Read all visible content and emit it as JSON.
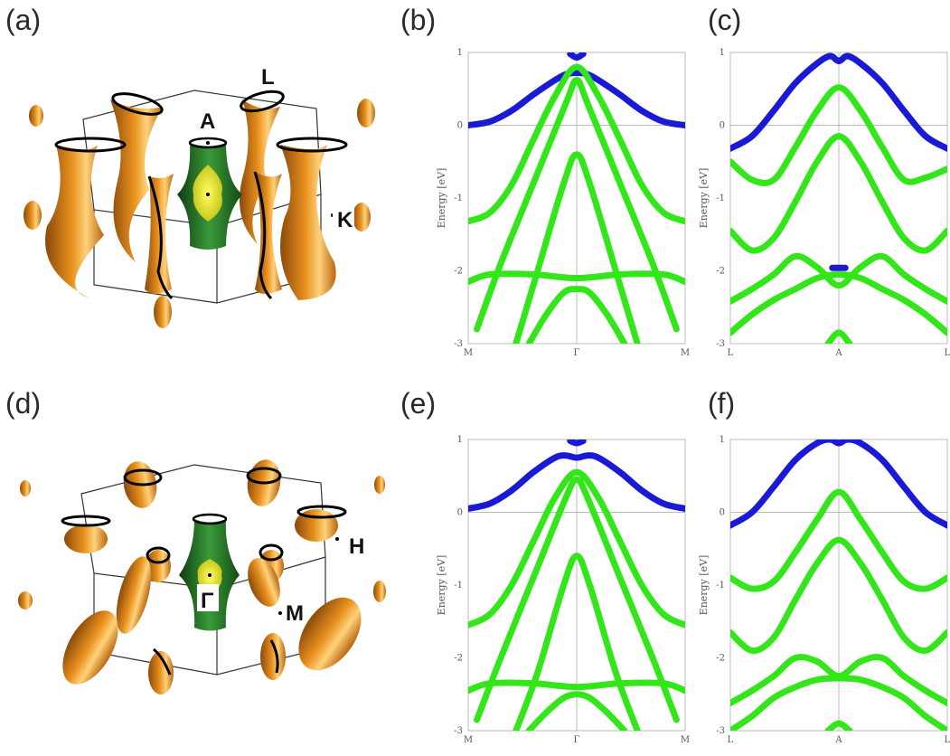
{
  "panels": {
    "a": "(a)",
    "b": "(b)",
    "c": "(c)",
    "d": "(d)",
    "e": "(e)",
    "f": "(f)"
  },
  "fermi_surface_top": {
    "labels": [
      "L",
      "A",
      "K"
    ]
  },
  "fermi_surface_bottom": {
    "labels": [
      "H",
      "Γ",
      "M"
    ]
  },
  "colors": {
    "band_upper": "#1a1ad6",
    "band_lower": "#33e61a",
    "pocket_orange": "#e8901e",
    "pocket_green": "#1f6b1f",
    "pocket_yellow": "#e8e82a"
  },
  "chart_data": [
    {
      "panel": "b",
      "type": "line",
      "ylabel": "Energy [eV]",
      "x_ticks": [
        "M",
        "Γ",
        "M"
      ],
      "ylim": [
        -3,
        1
      ],
      "y_ticks": [
        "1",
        "0",
        "-1",
        "-2",
        "-3"
      ],
      "series": [
        {
          "color": "blue",
          "x": [
            0,
            0.1,
            0.2,
            0.3,
            0.4,
            0.45,
            0.5,
            0.55,
            0.6,
            0.7,
            0.8,
            0.9,
            1
          ],
          "y": [
            0,
            0.05,
            0.2,
            0.42,
            0.62,
            0.7,
            0.72,
            0.7,
            0.62,
            0.42,
            0.2,
            0.05,
            0
          ]
        },
        {
          "color": "blue",
          "x": [
            0.47,
            0.5,
            0.53
          ],
          "y": [
            0.98,
            0.93,
            0.98
          ]
        },
        {
          "color": "green",
          "x": [
            0,
            0.1,
            0.2,
            0.3,
            0.4,
            0.5,
            0.6,
            0.7,
            0.8,
            0.9,
            1
          ],
          "y": [
            -1.32,
            -1.2,
            -0.82,
            -0.2,
            0.4,
            0.8,
            0.4,
            -0.2,
            -0.82,
            -1.2,
            -1.32
          ]
        },
        {
          "color": "green",
          "x": [
            0.04,
            0.15,
            0.3,
            0.45,
            0.5,
            0.55,
            0.7,
            0.85,
            0.96
          ],
          "y": [
            -2.8,
            -1.9,
            -0.8,
            0.3,
            0.62,
            0.3,
            -0.8,
            -1.9,
            -2.8
          ]
        },
        {
          "color": "green",
          "x": [
            0.22,
            0.32,
            0.44,
            0.5,
            0.56,
            0.68,
            0.78
          ],
          "y": [
            -3,
            -2,
            -0.8,
            -0.4,
            -0.8,
            -2,
            -3
          ]
        },
        {
          "color": "green",
          "x": [
            0,
            0.1,
            0.3,
            0.5,
            0.7,
            0.9,
            1
          ],
          "y": [
            -2.15,
            -2.05,
            -2.05,
            -2.1,
            -2.05,
            -2.05,
            -2.15
          ]
        },
        {
          "color": "green",
          "x": [
            0.28,
            0.36,
            0.44,
            0.5,
            0.56,
            0.64,
            0.72
          ],
          "y": [
            -3,
            -2.6,
            -2.3,
            -2.25,
            -2.3,
            -2.6,
            -3
          ]
        }
      ]
    },
    {
      "panel": "c",
      "type": "line",
      "ylabel": "Energy [eV]",
      "x_ticks": [
        "L",
        "A",
        "L"
      ],
      "ylim": [
        -3,
        1
      ],
      "y_ticks": [
        "1",
        "0",
        "-1",
        "-2",
        "-3"
      ],
      "series": [
        {
          "color": "blue",
          "x": [
            0,
            0.1,
            0.2,
            0.3,
            0.4,
            0.46,
            0.5,
            0.54,
            0.6,
            0.7,
            0.8,
            0.9,
            1
          ],
          "y": [
            -0.32,
            -0.15,
            0.2,
            0.58,
            0.85,
            0.95,
            0.88,
            0.95,
            0.85,
            0.58,
            0.2,
            -0.15,
            -0.32
          ]
        },
        {
          "color": "green",
          "x": [
            0,
            0.1,
            0.2,
            0.3,
            0.4,
            0.5,
            0.6,
            0.7,
            0.8,
            0.9,
            1
          ],
          "y": [
            -0.5,
            -0.75,
            -0.75,
            -0.3,
            0.2,
            0.52,
            0.2,
            -0.3,
            -0.75,
            -0.72,
            -0.6
          ]
        },
        {
          "color": "green",
          "x": [
            0,
            0.1,
            0.2,
            0.3,
            0.4,
            0.5,
            0.6,
            0.7,
            0.8,
            0.9,
            1
          ],
          "y": [
            -1.45,
            -1.72,
            -1.55,
            -1.05,
            -0.5,
            -0.15,
            -0.5,
            -1.05,
            -1.55,
            -1.72,
            -1.45
          ]
        },
        {
          "color": "green",
          "x": [
            0,
            0.1,
            0.2,
            0.3,
            0.4,
            0.5,
            0.6,
            0.7,
            0.8,
            0.9,
            1
          ],
          "y": [
            -2.42,
            -2.25,
            -2.05,
            -1.8,
            -1.95,
            -2.2,
            -1.95,
            -1.8,
            -2.05,
            -2.25,
            -2.42
          ]
        },
        {
          "color": "green",
          "x": [
            0,
            0.1,
            0.2,
            0.3,
            0.4,
            0.5,
            0.6,
            0.7,
            0.8,
            0.9,
            1
          ],
          "y": [
            -2.85,
            -2.6,
            -2.4,
            -2.25,
            -2.1,
            -2.05,
            -2.1,
            -2.25,
            -2.4,
            -2.6,
            -2.85
          ]
        },
        {
          "color": "green",
          "x": [
            0.45,
            0.5,
            0.55
          ],
          "y": [
            -3,
            -2.85,
            -3
          ]
        },
        {
          "color": "blue",
          "x": [
            0.47,
            0.5,
            0.53
          ],
          "y": [
            -1.96,
            -1.96,
            -1.96
          ]
        }
      ]
    },
    {
      "panel": "e",
      "type": "line",
      "ylabel": "Energy [eV]",
      "x_ticks": [
        "M",
        "Γ",
        "M"
      ],
      "ylim": [
        -3,
        1
      ],
      "y_ticks": [
        "1",
        "0",
        "-1",
        "-2",
        "-3"
      ],
      "series": [
        {
          "color": "blue",
          "x": [
            0,
            0.1,
            0.2,
            0.3,
            0.4,
            0.45,
            0.5,
            0.55,
            0.6,
            0.7,
            0.8,
            0.9,
            1
          ],
          "y": [
            0.05,
            0.12,
            0.3,
            0.55,
            0.75,
            0.78,
            0.75,
            0.78,
            0.75,
            0.55,
            0.3,
            0.12,
            0.05
          ]
        },
        {
          "color": "blue",
          "x": [
            0.47,
            0.5,
            0.53
          ],
          "y": [
            0.98,
            0.95,
            0.98
          ]
        },
        {
          "color": "green",
          "x": [
            0,
            0.1,
            0.2,
            0.3,
            0.4,
            0.5,
            0.6,
            0.7,
            0.8,
            0.9,
            1
          ],
          "y": [
            -1.55,
            -1.4,
            -1.0,
            -0.4,
            0.2,
            0.55,
            0.2,
            -0.4,
            -1.0,
            -1.4,
            -1.55
          ]
        },
        {
          "color": "green",
          "x": [
            0.04,
            0.15,
            0.3,
            0.45,
            0.5,
            0.55,
            0.7,
            0.85,
            0.96
          ],
          "y": [
            -2.85,
            -2.0,
            -0.9,
            0.2,
            0.45,
            0.2,
            -0.9,
            -2.0,
            -2.85
          ]
        },
        {
          "color": "green",
          "x": [
            0.22,
            0.32,
            0.44,
            0.5,
            0.56,
            0.68,
            0.78
          ],
          "y": [
            -3,
            -2.2,
            -1.0,
            -0.6,
            -1.0,
            -2.2,
            -3
          ]
        },
        {
          "color": "green",
          "x": [
            0,
            0.1,
            0.3,
            0.5,
            0.7,
            0.9,
            1
          ],
          "y": [
            -2.45,
            -2.35,
            -2.35,
            -2.4,
            -2.35,
            -2.35,
            -2.45
          ]
        },
        {
          "color": "green",
          "x": [
            0.28,
            0.36,
            0.44,
            0.5,
            0.56,
            0.64,
            0.72
          ],
          "y": [
            -3,
            -2.75,
            -2.55,
            -2.5,
            -2.55,
            -2.75,
            -3
          ]
        }
      ]
    },
    {
      "panel": "f",
      "type": "line",
      "ylabel": "Energy [eV]",
      "x_ticks": [
        "L",
        "A",
        "L"
      ],
      "ylim": [
        -3,
        1
      ],
      "y_ticks": [
        "1",
        "0",
        "-1",
        "-2",
        "-3"
      ],
      "series": [
        {
          "color": "blue",
          "x": [
            0,
            0.1,
            0.2,
            0.3,
            0.4,
            0.46,
            0.5,
            0.54,
            0.6,
            0.7,
            0.8,
            0.9,
            1
          ],
          "y": [
            -0.18,
            0.0,
            0.35,
            0.72,
            0.95,
            1.0,
            0.95,
            1.0,
            0.95,
            0.72,
            0.35,
            0.0,
            -0.18
          ]
        },
        {
          "color": "green",
          "x": [
            0,
            0.1,
            0.2,
            0.3,
            0.4,
            0.5,
            0.6,
            0.7,
            0.8,
            0.9,
            1
          ],
          "y": [
            -0.9,
            -1.05,
            -0.95,
            -0.55,
            -0.1,
            0.28,
            -0.1,
            -0.55,
            -0.95,
            -1.05,
            -0.9
          ]
        },
        {
          "color": "green",
          "x": [
            0,
            0.1,
            0.2,
            0.3,
            0.4,
            0.5,
            0.6,
            0.7,
            0.8,
            0.9,
            1
          ],
          "y": [
            -1.65,
            -1.9,
            -1.72,
            -1.2,
            -0.7,
            -0.38,
            -0.7,
            -1.2,
            -1.72,
            -1.9,
            -1.65
          ]
        },
        {
          "color": "green",
          "x": [
            0,
            0.1,
            0.2,
            0.3,
            0.4,
            0.5,
            0.6,
            0.7,
            0.8,
            0.9,
            1
          ],
          "y": [
            -2.62,
            -2.45,
            -2.25,
            -2.0,
            -2.05,
            -2.25,
            -2.05,
            -2.0,
            -2.25,
            -2.45,
            -2.62
          ]
        },
        {
          "color": "green",
          "x": [
            0,
            0.1,
            0.2,
            0.3,
            0.4,
            0.5,
            0.6,
            0.7,
            0.8,
            0.9,
            1
          ],
          "y": [
            -3.0,
            -2.8,
            -2.55,
            -2.4,
            -2.3,
            -2.28,
            -2.3,
            -2.4,
            -2.55,
            -2.8,
            -3.0
          ]
        },
        {
          "color": "green",
          "x": [
            0.45,
            0.5,
            0.55
          ],
          "y": [
            -3,
            -2.9,
            -3
          ]
        }
      ]
    }
  ]
}
